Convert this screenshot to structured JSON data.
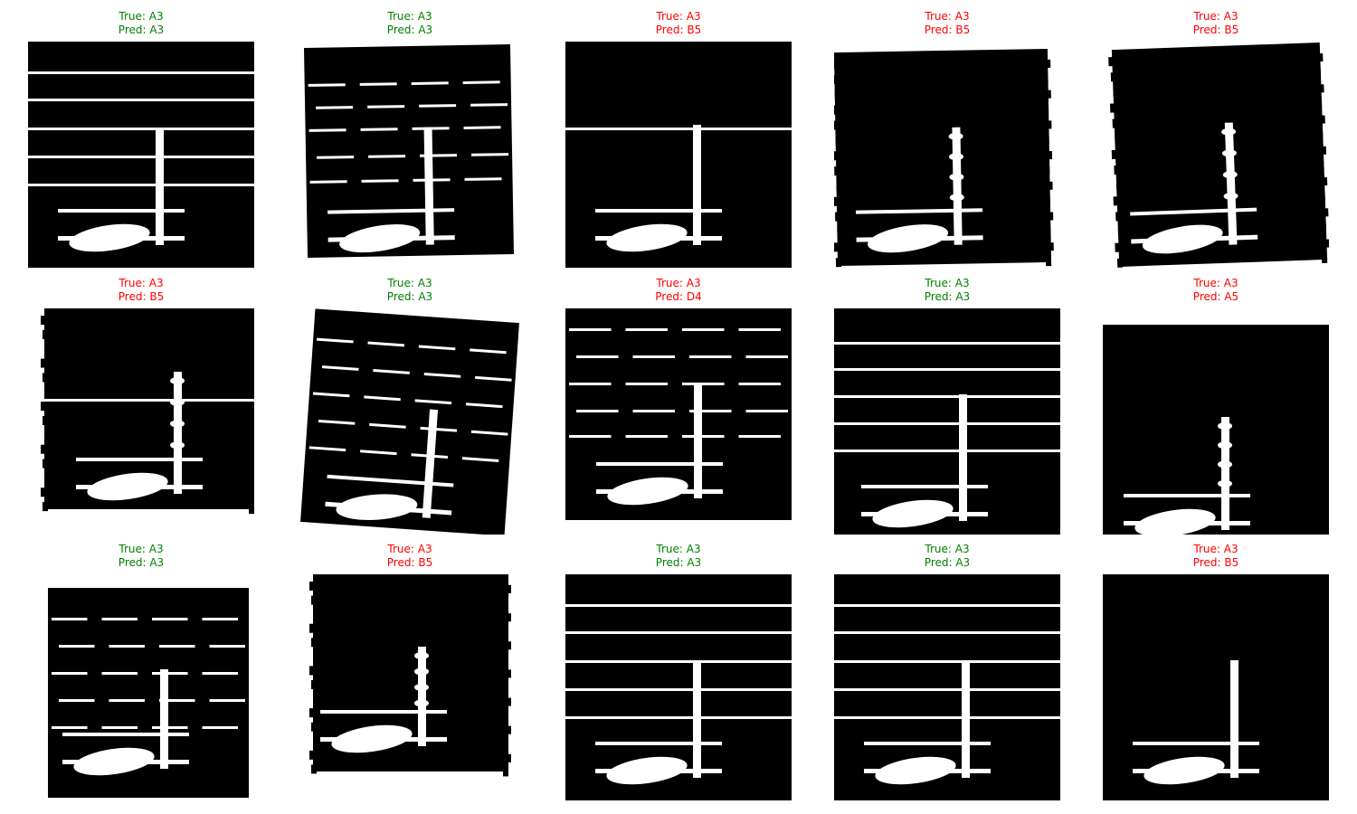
{
  "colors": {
    "correct": "#008000",
    "incorrect": "#ff0000"
  },
  "samples": [
    {
      "true_label": "True: A3",
      "pred_label": "Pred: A3",
      "correct": true,
      "variant": "staff-full"
    },
    {
      "true_label": "True: A3",
      "pred_label": "Pred: A3",
      "correct": true,
      "variant": "skew-broken"
    },
    {
      "true_label": "True: A3",
      "pred_label": "Pred: B5",
      "correct": false,
      "variant": "one-line"
    },
    {
      "true_label": "True: A3",
      "pred_label": "Pred: B5",
      "correct": false,
      "variant": "noisy"
    },
    {
      "true_label": "True: A3",
      "pred_label": "Pred: B5",
      "correct": false,
      "variant": "noisy-tilt"
    },
    {
      "true_label": "True: A3",
      "pred_label": "Pred: B5",
      "correct": false,
      "variant": "noisy-offset"
    },
    {
      "true_label": "True: A3",
      "pred_label": "Pred: A3",
      "correct": true,
      "variant": "skew-strong"
    },
    {
      "true_label": "True: A3",
      "pred_label": "Pred: D4",
      "correct": false,
      "variant": "broken-lines"
    },
    {
      "true_label": "True: A3",
      "pred_label": "Pred: A3",
      "correct": true,
      "variant": "staff-low"
    },
    {
      "true_label": "True: A3",
      "pred_label": "Pred: A5",
      "correct": false,
      "variant": "noisy-low"
    },
    {
      "true_label": "True: A3",
      "pred_label": "Pred: A3",
      "correct": true,
      "variant": "broken-small"
    },
    {
      "true_label": "True: A3",
      "pred_label": "Pred: B5",
      "correct": false,
      "variant": "noisy-high"
    },
    {
      "true_label": "True: A3",
      "pred_label": "Pred: A3",
      "correct": true,
      "variant": "staff-full"
    },
    {
      "true_label": "True: A3",
      "pred_label": "Pred: A3",
      "correct": true,
      "variant": "staff-full"
    },
    {
      "true_label": "True: A3",
      "pred_label": "Pred: B5",
      "correct": false,
      "variant": "plain"
    }
  ]
}
